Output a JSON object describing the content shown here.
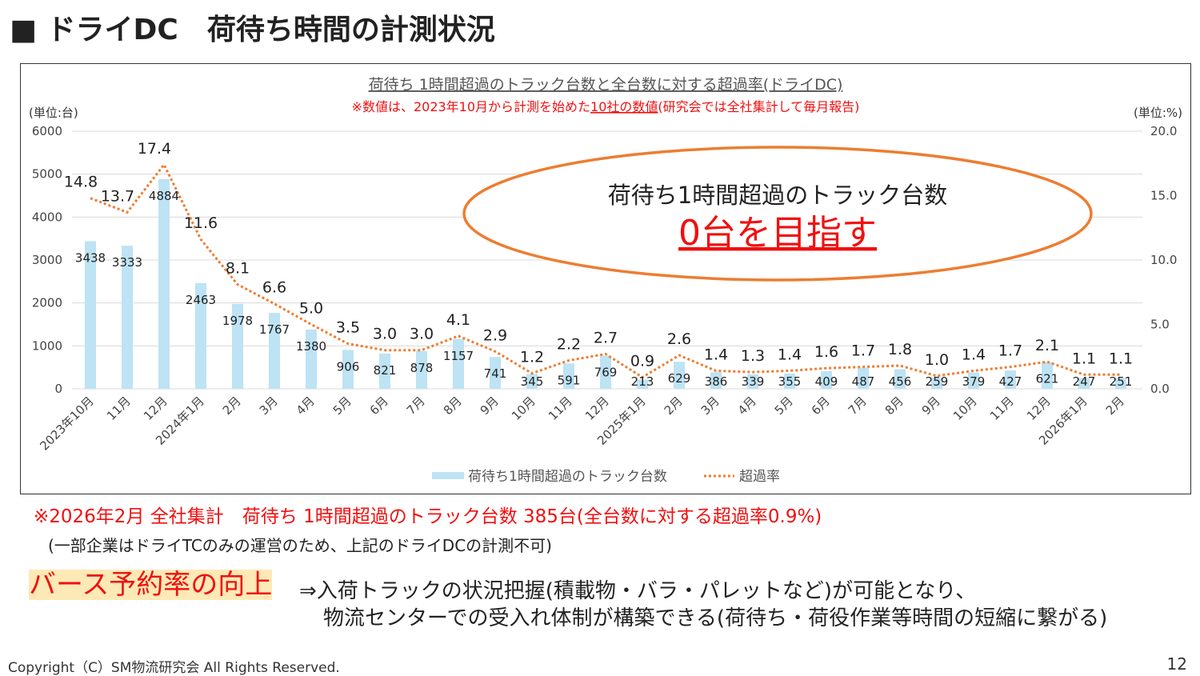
{
  "page_title": "■ ドライDC　荷待ち時間の計測状況",
  "chart_data": {
    "type": "bar+line",
    "title": "荷待ち 1時間超過のトラック台数と全台数に対する超過率(ドライDC)",
    "subtitle_prefix": "※数値は、2023年10月から計測を始めた",
    "subtitle_underlined": "10社の数値",
    "subtitle_suffix": "(研究会では全社集計して毎月報告)",
    "left_unit": "(単位:台)",
    "right_unit": "(単位:%)",
    "ylim_left": [
      0,
      6000
    ],
    "ylim_right": [
      0,
      20
    ],
    "left_ticks": [
      "0",
      "1000",
      "2000",
      "3000",
      "4000",
      "5000",
      "6000"
    ],
    "right_ticks": [
      "0.0",
      "5.0",
      "10.0",
      "15.0",
      "20.0"
    ],
    "categories": [
      "2023年10月",
      "11月",
      "12月",
      "2024年1月",
      "2月",
      "3月",
      "4月",
      "5月",
      "6月",
      "7月",
      "8月",
      "9月",
      "10月",
      "11月",
      "12月",
      "2025年1月",
      "2月",
      "3月",
      "4月",
      "5月",
      "6月",
      "7月",
      "8月",
      "9月",
      "10月",
      "11月",
      "12月",
      "2026年1月",
      "2月"
    ],
    "series": [
      {
        "name": "荷待ち1時間超過のトラック台数",
        "type": "bar",
        "axis": "left",
        "color": "#bde3f4",
        "values": [
          3438,
          3333,
          4884,
          2463,
          1978,
          1767,
          1380,
          906,
          821,
          878,
          1157,
          741,
          345,
          591,
          769,
          213,
          629,
          386,
          339,
          355,
          409,
          487,
          456,
          259,
          379,
          427,
          621,
          247,
          251
        ]
      },
      {
        "name": "超過率",
        "type": "line",
        "axis": "right",
        "color": "#ed7d31",
        "values": [
          14.8,
          13.7,
          17.4,
          11.6,
          8.1,
          6.6,
          5.0,
          3.5,
          3.0,
          3.0,
          4.1,
          2.9,
          1.2,
          2.2,
          2.7,
          0.9,
          2.6,
          1.4,
          1.3,
          1.4,
          1.6,
          1.7,
          1.8,
          1.0,
          1.4,
          1.7,
          2.1,
          1.1,
          1.1
        ]
      }
    ],
    "grid": true,
    "legend": "bottom",
    "annotation": {
      "line1": "荷待ち1時間超過のトラック台数",
      "line2": "0台を目指す"
    }
  },
  "notes": {
    "summary": "※2026年2月 全社集計　荷待ち 1時間超過のトラック台数 385台(全台数に対する超過率0.9%)",
    "caveat": "(一部企業はドライTCのみの運営のため、上記のドライDCの計測不可)",
    "highlight": "バース予約率の向上",
    "arrow_text": "⇒入荷トラックの状況把握(積載物・バラ・パレットなど)が可能となり、",
    "line2": "物流センターでの受入れ体制が構築できる(荷待ち・荷役作業等時間の短縮に繋がる)"
  },
  "footer": {
    "copyright": "Copyright（C）SM物流研究会 All Rights Reserved.",
    "page_number": "12"
  }
}
